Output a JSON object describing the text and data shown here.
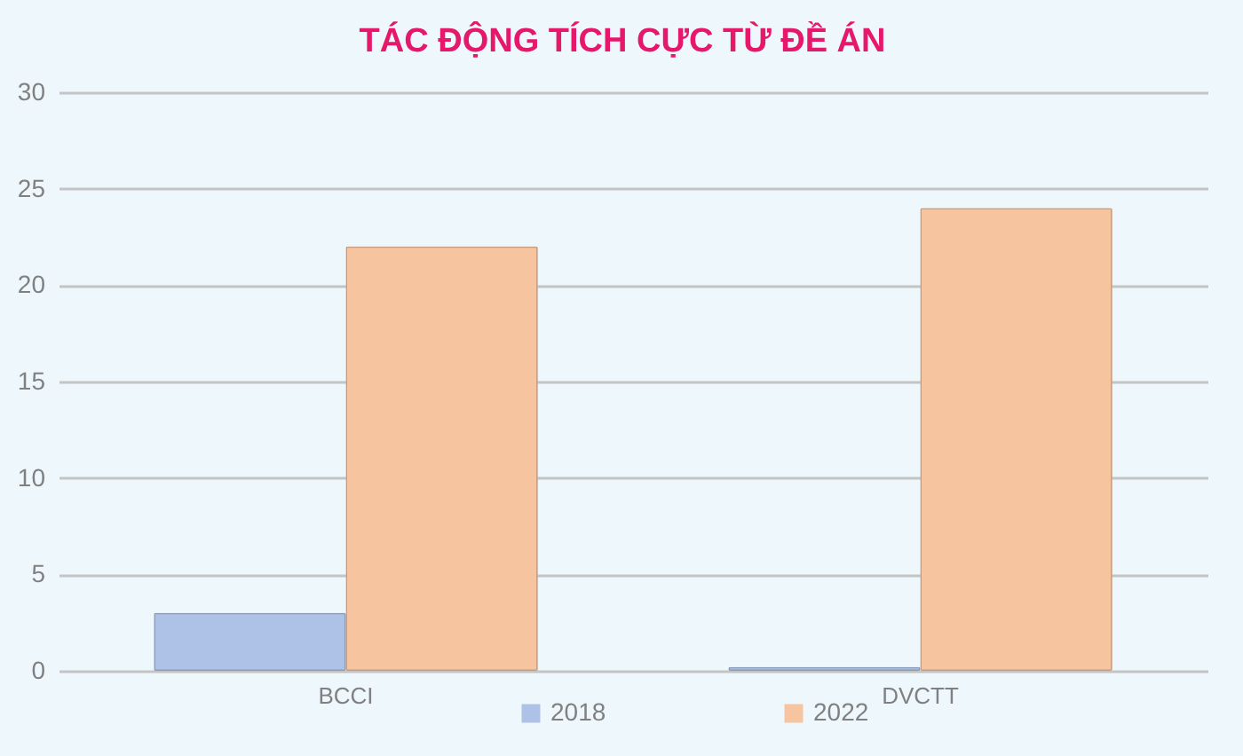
{
  "chart_data": {
    "type": "bar",
    "title": "TÁC ĐỘNG TÍCH CỰC TỪ ĐỀ ÁN",
    "categories": [
      "BCCI",
      "DVCTT"
    ],
    "series": [
      {
        "name": "2018",
        "color": "#adc2e6",
        "values": [
          3,
          0.2
        ]
      },
      {
        "name": "2022",
        "color": "#f7c4a0",
        "values": [
          22,
          24
        ]
      }
    ],
    "ylim": [
      0,
      30
    ],
    "yticks": [
      0,
      5,
      10,
      15,
      20,
      25,
      30
    ],
    "grid": "y",
    "legend": "bottom"
  }
}
